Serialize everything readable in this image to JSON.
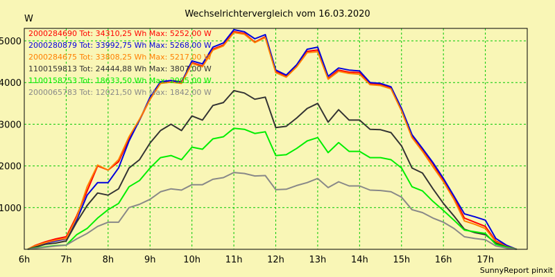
{
  "chart_data": {
    "type": "line",
    "title": "Wechselrichtervergleich vom 16.03.2020",
    "ylabel": "W",
    "xlabel": "",
    "footer": "SunnyReport pinxit",
    "xlim": [
      6,
      18
    ],
    "ylim": [
      0,
      5300
    ],
    "grid": true,
    "x_tick_values": [
      6,
      7,
      8,
      9,
      10,
      11,
      12,
      13,
      14,
      15,
      16,
      17
    ],
    "x_tick_labels": [
      "6h",
      "7h",
      "8h",
      "9h",
      "10h",
      "11h",
      "12h",
      "13h",
      "14h",
      "15h",
      "16h",
      "17h"
    ],
    "y_tick_values": [
      1000,
      2000,
      3000,
      4000,
      5000
    ],
    "y_tick_labels": [
      "1000",
      "2000",
      "3000",
      "4000",
      "5000"
    ],
    "x": [
      6.08,
      6.25,
      6.5,
      6.75,
      7.0,
      7.25,
      7.5,
      7.75,
      8.0,
      8.25,
      8.5,
      8.75,
      9.0,
      9.25,
      9.5,
      9.75,
      10.0,
      10.25,
      10.5,
      10.75,
      11.0,
      11.25,
      11.5,
      11.75,
      12.0,
      12.25,
      12.5,
      12.75,
      13.0,
      13.25,
      13.5,
      13.75,
      14.0,
      14.25,
      14.5,
      14.75,
      15.0,
      15.25,
      15.5,
      15.75,
      16.0,
      16.25,
      16.5,
      16.75,
      17.0,
      17.25,
      17.5,
      17.75
    ],
    "series": [
      {
        "name": "2000284690",
        "legend": "2000284690 Tot: 34310,25 Wh Max: 5252,00 W",
        "color": "#ff0000",
        "values": [
          0,
          90,
          180,
          250,
          300,
          800,
          1400,
          2000,
          1900,
          2100,
          2650,
          3100,
          3600,
          4000,
          4050,
          4020,
          4480,
          4400,
          4800,
          4900,
          5220,
          5180,
          4970,
          5100,
          4260,
          4150,
          4400,
          4750,
          4780,
          4100,
          4300,
          4250,
          4240,
          3980,
          3960,
          3880,
          3350,
          2700,
          2400,
          2050,
          1650,
          1250,
          750,
          650,
          550,
          200,
          80,
          0
        ]
      },
      {
        "name": "2000280879",
        "legend": "2000280879 Tot: 33992,75 Wh Max: 5268,00 W",
        "color": "#0000dd",
        "values": [
          0,
          70,
          150,
          200,
          250,
          700,
          1300,
          1600,
          1600,
          1950,
          2600,
          3100,
          3650,
          4020,
          4050,
          4000,
          4520,
          4450,
          4850,
          4950,
          5268,
          5220,
          5050,
          5150,
          4300,
          4180,
          4430,
          4800,
          4850,
          4150,
          4350,
          4300,
          4280,
          4000,
          3980,
          3900,
          3380,
          2750,
          2420,
          2080,
          1700,
          1280,
          850,
          780,
          700,
          260,
          100,
          0
        ]
      },
      {
        "name": "2000284675",
        "legend": "2000284675 Tot: 33808,25 Wh Max: 5217,00 W",
        "color": "#ff7f00",
        "values": [
          0,
          80,
          160,
          220,
          260,
          760,
          1500,
          2020,
          1900,
          2150,
          2700,
          3120,
          3600,
          3980,
          4010,
          3980,
          4460,
          4380,
          4780,
          4880,
          5200,
          5160,
          4960,
          5080,
          4240,
          4130,
          4380,
          4720,
          4740,
          4080,
          4270,
          4220,
          4200,
          3950,
          3930,
          3850,
          3320,
          2680,
          2350,
          1980,
          1620,
          1200,
          680,
          600,
          500,
          180,
          70,
          0
        ]
      },
      {
        "name": "1100159813",
        "legend": "1100159813 Tot: 24444,88 Wh Max: 3807,00 W",
        "color": "#333333",
        "values": [
          0,
          50,
          120,
          150,
          200,
          650,
          1050,
          1350,
          1300,
          1450,
          1950,
          2150,
          2550,
          2850,
          3000,
          2850,
          3200,
          3100,
          3450,
          3520,
          3807,
          3750,
          3600,
          3650,
          2920,
          2950,
          3150,
          3380,
          3500,
          3050,
          3350,
          3100,
          3100,
          2880,
          2870,
          2800,
          2480,
          1950,
          1830,
          1450,
          1100,
          800,
          480,
          400,
          350,
          150,
          60,
          0
        ]
      },
      {
        "name": "1100158753",
        "legend": "1100158753 Tot: 18633,50 Wh Max: 2905,00 W",
        "color": "#00ee00",
        "values": [
          0,
          30,
          60,
          90,
          100,
          350,
          500,
          750,
          950,
          1100,
          1500,
          1650,
          1950,
          2200,
          2250,
          2150,
          2450,
          2400,
          2650,
          2700,
          2905,
          2880,
          2780,
          2820,
          2250,
          2270,
          2420,
          2600,
          2680,
          2320,
          2560,
          2350,
          2350,
          2200,
          2200,
          2150,
          1950,
          1500,
          1400,
          1150,
          930,
          700,
          460,
          420,
          380,
          120,
          50,
          0
        ]
      },
      {
        "name": "2000065783",
        "legend": "2000065783 Tot: 12021,50 Wh Max: 1842,00 W",
        "color": "#888888",
        "values": [
          0,
          20,
          50,
          80,
          100,
          250,
          380,
          550,
          650,
          650,
          1000,
          1080,
          1200,
          1380,
          1450,
          1420,
          1550,
          1550,
          1680,
          1720,
          1842,
          1820,
          1760,
          1770,
          1430,
          1440,
          1530,
          1600,
          1700,
          1480,
          1620,
          1520,
          1520,
          1420,
          1410,
          1380,
          1250,
          950,
          880,
          750,
          650,
          500,
          300,
          260,
          230,
          80,
          30,
          0
        ]
      }
    ]
  }
}
